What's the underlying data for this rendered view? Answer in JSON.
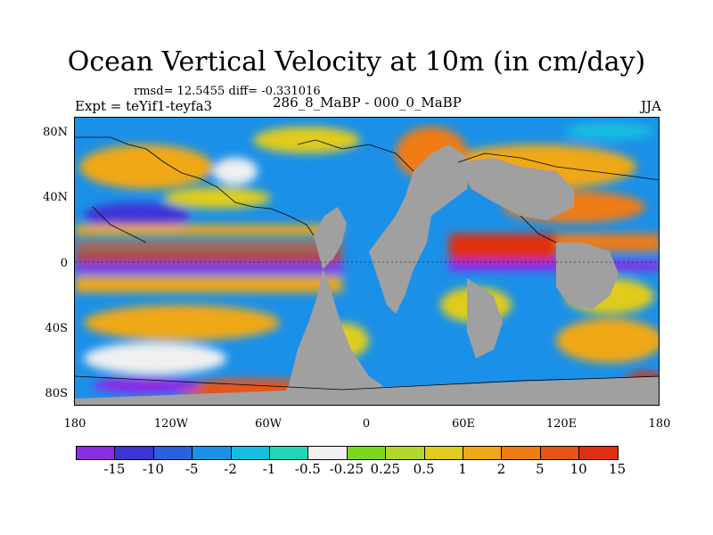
{
  "title": "Ocean Vertical Velocity at 10m (in cm/day)",
  "stats": "rmsd= 12.5455 diff= -0.331016",
  "expt": "Expt = teYif1-teyfa3",
  "difference_label": "286_8_MaBP - 000_0_MaBP",
  "season": "JJA",
  "lat_ticks": [
    "80N",
    "40N",
    "0",
    "40S",
    "80S"
  ],
  "lon_ticks": [
    "180",
    "120W",
    "60W",
    "0",
    "60E",
    "120E",
    "180"
  ],
  "colorbar": {
    "colors": [
      "#8c2ce6",
      "#3c34d6",
      "#2a5fe0",
      "#1b90e8",
      "#15bde0",
      "#20d8b8",
      "#f0f0f0",
      "#7cd81e",
      "#b4d82a",
      "#e0cc1c",
      "#f0a818",
      "#f07c14",
      "#ea5414",
      "#e02e10"
    ],
    "labels": [
      "-15",
      "-10",
      "-5",
      "-2",
      "-1",
      "-0.5",
      "-0.25",
      "0.25",
      "0.5",
      "1",
      "2",
      "5",
      "10",
      "15"
    ]
  },
  "land_color": "#a0a0a0"
}
